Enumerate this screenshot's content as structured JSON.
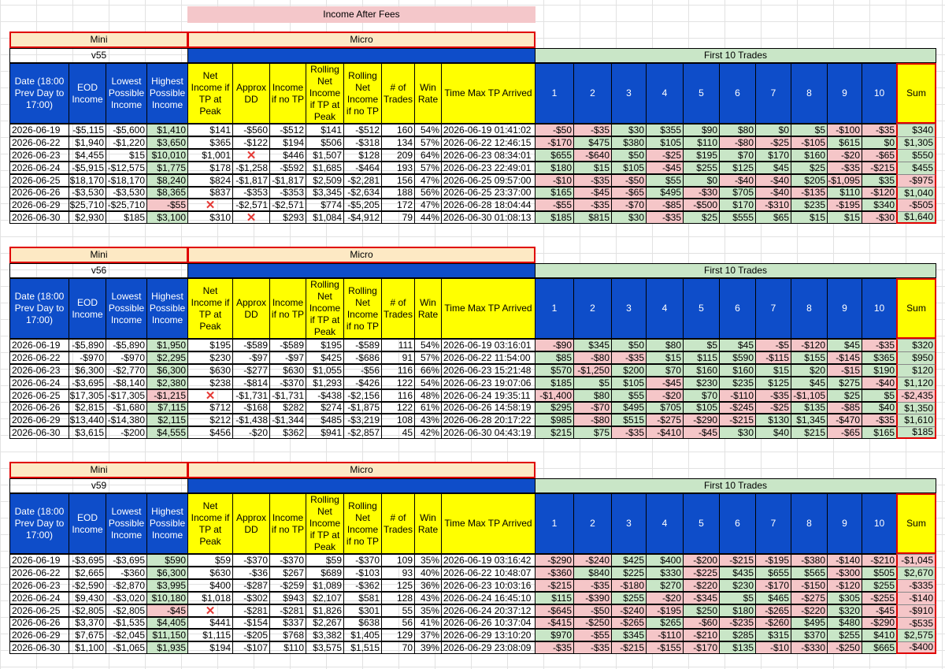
{
  "title": "Income After Fees",
  "group_labels": {
    "mini": "Mini",
    "micro": "Micro",
    "first10": "First 10 Trades"
  },
  "headers": {
    "date": "Date (18:00 Prev Day to 17:00)",
    "eod": "EOD Income",
    "lowest": "Lowest Possible Income",
    "highest": "Highest Possible Income",
    "net_tp": "Net Income if TP at Peak",
    "approx_dd": "Approx DD",
    "income_no_tp": "Income if no TP",
    "roll_tp": "Rolling Net Income if TP at Peak",
    "roll_no_tp": "Rolling Net Income if no TP",
    "trades": "# of Trades",
    "win": "Win Rate",
    "time_max": "Time Max TP Arrived",
    "trade_nums": [
      "1",
      "2",
      "3",
      "4",
      "5",
      "6",
      "7",
      "8",
      "9",
      "10"
    ],
    "sum": "Sum"
  },
  "sections": [
    {
      "version": "v55",
      "rows": [
        {
          "date": "2026-06-19",
          "eod": "-$5,115",
          "low": "-$5,600",
          "high": "$1,410",
          "hc": "g",
          "ntp": "$141",
          "dd": "-$560",
          "ino": "-$512",
          "rtp": "$141",
          "rno": "-$512",
          "tr": "160",
          "win": "54%",
          "time": "2026-06-19 01:41:02",
          "t": [
            "-$50",
            "-$35",
            "$30",
            "$355",
            "$90",
            "$80",
            "$0",
            "$5",
            "-$100",
            "-$35"
          ],
          "sum": "$340"
        },
        {
          "date": "2026-06-22",
          "eod": "$1,940",
          "low": "-$1,220",
          "high": "$3,650",
          "hc": "g",
          "ntp": "$365",
          "dd": "-$122",
          "ino": "$194",
          "rtp": "$506",
          "rno": "-$318",
          "tr": "134",
          "win": "57%",
          "time": "2026-06-22 12:46:15",
          "t": [
            "-$170",
            "$475",
            "$380",
            "$105",
            "$110",
            "-$80",
            "-$25",
            "-$105",
            "$615",
            "$0"
          ],
          "sum": "$1,305"
        },
        {
          "date": "2026-06-23",
          "eod": "$4,455",
          "low": "$15",
          "high": "$10,010",
          "hc": "g",
          "ntp": "$1,001",
          "dd": "X",
          "ino": "$446",
          "rtp": "$1,507",
          "rno": "$128",
          "tr": "209",
          "win": "64%",
          "time": "2026-06-23 08:34:01",
          "t": [
            "$655",
            "-$640",
            "$50",
            "-$25",
            "$195",
            "$70",
            "$170",
            "$160",
            "-$20",
            "-$65"
          ],
          "sum": "$550"
        },
        {
          "date": "2026-06-24",
          "eod": "-$5,915",
          "low": "-$12,575",
          "high": "$1,775",
          "hc": "g",
          "ntp": "$178",
          "dd": "-$1,258",
          "ino": "-$592",
          "rtp": "$1,685",
          "rno": "-$464",
          "tr": "193",
          "win": "57%",
          "time": "2026-06-23 22:49:01",
          "t": [
            "$180",
            "$15",
            "$105",
            "-$45",
            "$255",
            "$125",
            "$45",
            "$25",
            "-$35",
            "-$215"
          ],
          "sum": "$455"
        },
        {
          "date": "2026-06-25",
          "eod": "-$18,170",
          "low": "-$18,170",
          "high": "$8,240",
          "hc": "g",
          "ntp": "$824",
          "dd": "-$1,817",
          "ino": "-$1,817",
          "rtp": "$2,509",
          "rno": "-$2,281",
          "tr": "156",
          "win": "47%",
          "time": "2026-06-25 09:57:00",
          "t": [
            "-$10",
            "-$35",
            "-$50",
            "$55",
            "$0",
            "-$40",
            "-$40",
            "$205",
            "-$1,095",
            "$35"
          ],
          "sum": "-$975"
        },
        {
          "date": "2026-06-26",
          "eod": "-$3,530",
          "low": "-$3,530",
          "high": "$8,365",
          "hc": "g",
          "ntp": "$837",
          "dd": "-$353",
          "ino": "-$353",
          "rtp": "$3,345",
          "rno": "-$2,634",
          "tr": "188",
          "win": "56%",
          "time": "2026-06-25 23:37:00",
          "t": [
            "$165",
            "-$45",
            "-$65",
            "$495",
            "-$30",
            "$705",
            "-$40",
            "-$135",
            "$110",
            "-$120"
          ],
          "sum": "$1,040"
        },
        {
          "date": "2026-06-29",
          "eod": "-$25,710",
          "low": "-$25,710",
          "high": "-$55",
          "hc": "p",
          "ntp": "X",
          "dd": "-$2,571",
          "ino": "-$2,571",
          "rtp": "$774",
          "rno": "-$5,205",
          "tr": "172",
          "win": "47%",
          "time": "2026-06-28 18:04:44",
          "t": [
            "-$55",
            "-$35",
            "-$70",
            "-$85",
            "-$500",
            "$170",
            "-$310",
            "$235",
            "-$195",
            "$340"
          ],
          "sum": "-$505"
        },
        {
          "date": "2026-06-30",
          "eod": "$2,930",
          "low": "$185",
          "high": "$3,100",
          "hc": "g",
          "ntp": "$310",
          "dd": "X",
          "ino": "$293",
          "rtp": "$1,084",
          "rno": "-$4,912",
          "tr": "79",
          "win": "44%",
          "time": "2026-06-30 01:08:13",
          "t": [
            "$185",
            "$815",
            "$30",
            "-$35",
            "$25",
            "$555",
            "$65",
            "$15",
            "$15",
            "-$30"
          ],
          "sum": "$1,640"
        }
      ]
    },
    {
      "version": "v56",
      "rows": [
        {
          "date": "2026-06-19",
          "eod": "-$5,890",
          "low": "-$5,890",
          "high": "$1,950",
          "hc": "g",
          "ntp": "$195",
          "dd": "-$589",
          "ino": "-$589",
          "rtp": "$195",
          "rno": "-$589",
          "tr": "111",
          "win": "54%",
          "time": "2026-06-19 03:16:01",
          "t": [
            "-$90",
            "$345",
            "$50",
            "$80",
            "$5",
            "$45",
            "-$5",
            "-$120",
            "$45",
            "-$35"
          ],
          "sum": "$320"
        },
        {
          "date": "2026-06-22",
          "eod": "-$970",
          "low": "-$970",
          "high": "$2,295",
          "hc": "g",
          "ntp": "$230",
          "dd": "-$97",
          "ino": "-$97",
          "rtp": "$425",
          "rno": "-$686",
          "tr": "91",
          "win": "57%",
          "time": "2026-06-22 11:54:00",
          "t": [
            "$85",
            "-$80",
            "-$35",
            "$15",
            "$115",
            "$590",
            "-$115",
            "$155",
            "-$145",
            "$365"
          ],
          "sum": "$950"
        },
        {
          "date": "2026-06-23",
          "eod": "$6,300",
          "low": "-$2,770",
          "high": "$6,300",
          "hc": "g",
          "ntp": "$630",
          "dd": "-$277",
          "ino": "$630",
          "rtp": "$1,055",
          "rno": "-$56",
          "tr": "116",
          "win": "66%",
          "time": "2026-06-23 15:21:48",
          "t": [
            "$570",
            "-$1,250",
            "$200",
            "$70",
            "$160",
            "$160",
            "$15",
            "$20",
            "-$15",
            "$190"
          ],
          "sum": "$120"
        },
        {
          "date": "2026-06-24",
          "eod": "-$3,695",
          "low": "-$8,140",
          "high": "$2,380",
          "hc": "g",
          "ntp": "$238",
          "dd": "-$814",
          "ino": "-$370",
          "rtp": "$1,293",
          "rno": "-$426",
          "tr": "122",
          "win": "54%",
          "time": "2026-06-23 19:07:06",
          "t": [
            "$185",
            "$5",
            "$105",
            "-$45",
            "$230",
            "$235",
            "$125",
            "$45",
            "$275",
            "-$40"
          ],
          "sum": "$1,120"
        },
        {
          "date": "2026-06-25",
          "eod": "-$17,305",
          "low": "-$17,305",
          "high": "-$1,215",
          "hc": "p",
          "ntp": "X",
          "dd": "-$1,731",
          "ino": "-$1,731",
          "rtp": "-$438",
          "rno": "-$2,156",
          "tr": "116",
          "win": "48%",
          "time": "2026-06-24 19:35:11",
          "t": [
            "-$1,400",
            "$80",
            "$55",
            "-$20",
            "$70",
            "-$110",
            "-$35",
            "-$1,105",
            "$25",
            "$5"
          ],
          "sum": "-$2,435"
        },
        {
          "date": "2026-06-26",
          "eod": "$2,815",
          "low": "-$1,680",
          "high": "$7,115",
          "hc": "g",
          "ntp": "$712",
          "dd": "-$168",
          "ino": "$282",
          "rtp": "$274",
          "rno": "-$1,875",
          "tr": "122",
          "win": "61%",
          "time": "2026-06-26 14:58:19",
          "t": [
            "$295",
            "-$70",
            "$495",
            "$705",
            "$105",
            "-$245",
            "-$25",
            "$135",
            "-$85",
            "$40"
          ],
          "sum": "$1,350"
        },
        {
          "date": "2026-06-29",
          "eod": "-$13,440",
          "low": "-$14,380",
          "high": "$2,115",
          "hc": "g",
          "ntp": "$212",
          "dd": "-$1,438",
          "ino": "-$1,344",
          "rtp": "$485",
          "rno": "-$3,219",
          "tr": "108",
          "win": "43%",
          "time": "2026-06-28 20:17:22",
          "t": [
            "$985",
            "-$80",
            "$515",
            "-$275",
            "-$290",
            "-$215",
            "$130",
            "$1,345",
            "-$470",
            "-$35"
          ],
          "sum": "$1,610"
        },
        {
          "date": "2026-06-30",
          "eod": "$3,615",
          "low": "-$200",
          "high": "$4,555",
          "hc": "g",
          "ntp": "$456",
          "dd": "-$20",
          "ino": "$362",
          "rtp": "$941",
          "rno": "-$2,857",
          "tr": "45",
          "win": "42%",
          "time": "2026-06-30 04:43:19",
          "t": [
            "$215",
            "$75",
            "-$35",
            "-$410",
            "-$45",
            "$30",
            "$40",
            "$215",
            "-$65",
            "$165"
          ],
          "sum": "$185"
        }
      ]
    },
    {
      "version": "v59",
      "rows": [
        {
          "date": "2026-06-19",
          "eod": "-$3,695",
          "low": "-$3,695",
          "high": "$590",
          "hc": "g",
          "ntp": "$59",
          "dd": "-$370",
          "ino": "-$370",
          "rtp": "$59",
          "rno": "-$370",
          "tr": "109",
          "win": "35%",
          "time": "2026-06-19 03:16:42",
          "t": [
            "-$290",
            "-$240",
            "$425",
            "$400",
            "-$200",
            "-$215",
            "-$195",
            "-$380",
            "-$140",
            "-$210"
          ],
          "sum": "-$1,045"
        },
        {
          "date": "2026-06-22",
          "eod": "$2,665",
          "low": "-$360",
          "high": "$6,300",
          "hc": "g",
          "ntp": "$630",
          "dd": "-$36",
          "ino": "$267",
          "rtp": "$689",
          "rno": "-$103",
          "tr": "93",
          "win": "40%",
          "time": "2026-06-22 10:48:07",
          "t": [
            "-$360",
            "$840",
            "$225",
            "$330",
            "-$225",
            "$435",
            "$655",
            "$565",
            "-$300",
            "$505"
          ],
          "sum": "$2,670"
        },
        {
          "date": "2026-06-23",
          "eod": "-$2,590",
          "low": "-$2,870",
          "high": "$3,995",
          "hc": "g",
          "ntp": "$400",
          "dd": "-$287",
          "ino": "-$259",
          "rtp": "$1,089",
          "rno": "-$362",
          "tr": "125",
          "win": "36%",
          "time": "2026-06-23 10:03:16",
          "t": [
            "-$215",
            "-$35",
            "-$180",
            "$270",
            "-$220",
            "$230",
            "-$170",
            "-$150",
            "-$120",
            "$255"
          ],
          "sum": "-$335"
        },
        {
          "date": "2026-06-24",
          "eod": "$9,430",
          "low": "-$3,020",
          "high": "$10,180",
          "hc": "g",
          "ntp": "$1,018",
          "dd": "-$302",
          "ino": "$943",
          "rtp": "$2,107",
          "rno": "$581",
          "tr": "128",
          "win": "43%",
          "time": "2026-06-24 16:45:10",
          "t": [
            "$115",
            "-$390",
            "$255",
            "-$20",
            "-$345",
            "$5",
            "$465",
            "-$275",
            "$305",
            "-$255"
          ],
          "sum": "-$140"
        },
        {
          "date": "2026-06-25",
          "eod": "-$2,805",
          "low": "-$2,805",
          "high": "-$45",
          "hc": "p",
          "ntp": "X",
          "dd": "-$281",
          "ino": "-$281",
          "rtp": "$1,826",
          "rno": "$301",
          "tr": "55",
          "win": "35%",
          "time": "2026-06-24 20:37:12",
          "t": [
            "-$645",
            "-$50",
            "-$240",
            "-$195",
            "$250",
            "$180",
            "-$265",
            "-$220",
            "$320",
            "-$45"
          ],
          "sum": "-$910"
        },
        {
          "date": "2026-06-26",
          "eod": "$3,370",
          "low": "-$1,535",
          "high": "$4,405",
          "hc": "g",
          "ntp": "$441",
          "dd": "-$154",
          "ino": "$337",
          "rtp": "$2,267",
          "rno": "$638",
          "tr": "56",
          "win": "41%",
          "time": "2026-06-26 10:37:04",
          "t": [
            "-$415",
            "-$250",
            "-$265",
            "$265",
            "-$60",
            "-$235",
            "-$260",
            "$495",
            "$480",
            "-$290"
          ],
          "sum": "-$535"
        },
        {
          "date": "2026-06-29",
          "eod": "$7,675",
          "low": "-$2,045",
          "high": "$11,150",
          "hc": "g",
          "ntp": "$1,115",
          "dd": "-$205",
          "ino": "$768",
          "rtp": "$3,382",
          "rno": "$1,405",
          "tr": "129",
          "win": "37%",
          "time": "2026-06-29 13:10:20",
          "t": [
            "$970",
            "-$55",
            "$345",
            "-$110",
            "-$210",
            "$285",
            "$315",
            "$370",
            "$255",
            "$410"
          ],
          "sum": "$2,575"
        },
        {
          "date": "2026-06-30",
          "eod": "$1,100",
          "low": "-$1,065",
          "high": "$1,935",
          "hc": "g",
          "ntp": "$194",
          "dd": "-$107",
          "ino": "$110",
          "rtp": "$3,575",
          "rno": "$1,515",
          "tr": "70",
          "win": "39%",
          "time": "2026-06-29 23:08:09",
          "t": [
            "-$35",
            "-$35",
            "-$215",
            "-$155",
            "-$170",
            "$135",
            "-$10",
            "-$330",
            "-$250",
            "$665"
          ],
          "sum": "-$400"
        }
      ]
    }
  ]
}
